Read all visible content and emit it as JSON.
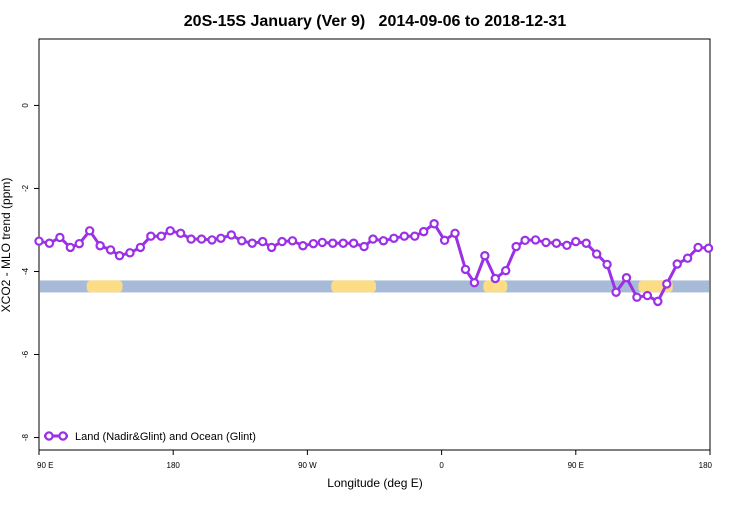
{
  "chart_data": {
    "type": "line",
    "title": "20S-15S January (Ver 9)   2014-09-06 to 2018-12-31",
    "xlabel": "Longitude (deg E)",
    "ylabel": "XCO2 - MLO trend (ppm)",
    "xlim": [
      90,
      540
    ],
    "ylim": [
      -8.3,
      1.6
    ],
    "x_ticks": [
      {
        "value": 90,
        "label": "90 E"
      },
      {
        "value": 180,
        "label": "180"
      },
      {
        "value": 270,
        "label": "90 W"
      },
      {
        "value": 360,
        "label": "0"
      },
      {
        "value": 450,
        "label": "90 E"
      },
      {
        "value": 540,
        "label": "180"
      }
    ],
    "y_ticks": [
      {
        "value": 0,
        "label": "0"
      },
      {
        "value": -2,
        "label": "-2"
      },
      {
        "value": -4,
        "label": "-4"
      },
      {
        "value": -6,
        "label": "-6"
      },
      {
        "value": -8,
        "label": "-8"
      }
    ],
    "grid": false,
    "legend": {
      "position": "bottom-left",
      "entries": [
        "Land (Nadir&Glint) and Ocean (Glint)"
      ]
    },
    "series": [
      {
        "name": "Land (Nadir&Glint) and Ocean (Glint)",
        "color": "#9b30e6",
        "x": [
          90,
          97,
          104,
          111,
          117,
          124,
          131,
          138,
          144,
          151,
          158,
          165,
          172,
          178,
          185,
          192,
          199,
          206,
          212,
          219,
          226,
          233,
          240,
          246,
          253,
          260,
          267,
          274,
          280,
          287,
          294,
          301,
          308,
          314,
          321,
          328,
          335,
          342,
          348,
          355,
          362,
          369,
          376,
          382,
          389,
          396,
          403,
          410,
          416,
          423,
          430,
          437,
          444,
          450,
          457,
          464,
          471,
          477,
          484,
          491,
          498,
          505,
          511,
          518,
          525,
          532,
          539
        ],
        "y": [
          -3.27,
          -3.32,
          -3.18,
          -3.42,
          -3.33,
          -3.02,
          -3.38,
          -3.48,
          -3.62,
          -3.55,
          -3.42,
          -3.15,
          -3.15,
          -3.02,
          -3.08,
          -3.22,
          -3.22,
          -3.24,
          -3.2,
          -3.12,
          -3.26,
          -3.32,
          -3.28,
          -3.42,
          -3.28,
          -3.26,
          -3.38,
          -3.33,
          -3.3,
          -3.32,
          -3.32,
          -3.32,
          -3.4,
          -3.22,
          -3.26,
          -3.2,
          -3.15,
          -3.15,
          -3.04,
          -2.85,
          -3.25,
          -3.08,
          -3.95,
          -4.27,
          -3.62,
          -4.17,
          -3.98,
          -3.4,
          -3.25,
          -3.24,
          -3.3,
          -3.32,
          -3.37,
          -3.28,
          -3.32,
          -3.58,
          -3.83,
          -4.5,
          -4.15,
          -4.62,
          -4.58,
          -4.72,
          -4.3,
          -3.82,
          -3.68,
          -3.42,
          -3.44
        ]
      }
    ],
    "ocean_band_color": "#a7bbd8",
    "land_band_color": "#fcdc84",
    "band_y": -4.36
  }
}
